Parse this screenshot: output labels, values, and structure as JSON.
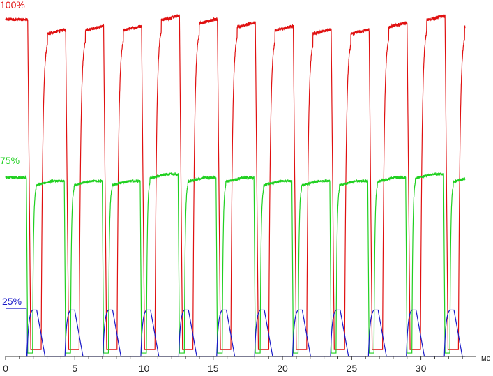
{
  "chart_data": {
    "type": "line",
    "title": "",
    "xlabel": "",
    "ylabel": "",
    "x_unit": "мс",
    "xlim": [
      0,
      34
    ],
    "x_ticks": [
      0,
      5,
      10,
      15,
      20,
      25,
      30
    ],
    "ylim": [
      0,
      100
    ],
    "grid": false,
    "legend": "none",
    "period_ms": 2.74,
    "series": [
      {
        "name": "100%",
        "color": "#e01010",
        "high_level": 98,
        "low_level": 2,
        "first_fall_ms": 1.6,
        "peak_levels": [
          98,
          95,
          96,
          96,
          99,
          98,
          97,
          96,
          95,
          95,
          97,
          99,
          97
        ]
      },
      {
        "name": "75%",
        "color": "#20d020",
        "high_level": 52,
        "low_level": 1,
        "first_fall_ms": 1.5,
        "peak_levels": [
          52,
          51,
          51,
          51,
          53,
          52,
          52,
          51,
          51,
          51,
          52,
          53,
          52
        ]
      },
      {
        "name": "25%",
        "color": "#1818c8",
        "high_level": 14,
        "low_level": 0,
        "first_fall_ms": 1.5,
        "peak_levels": [
          14,
          14,
          14,
          14,
          14,
          14,
          14,
          14,
          14,
          14,
          14,
          14,
          14
        ]
      }
    ]
  }
}
